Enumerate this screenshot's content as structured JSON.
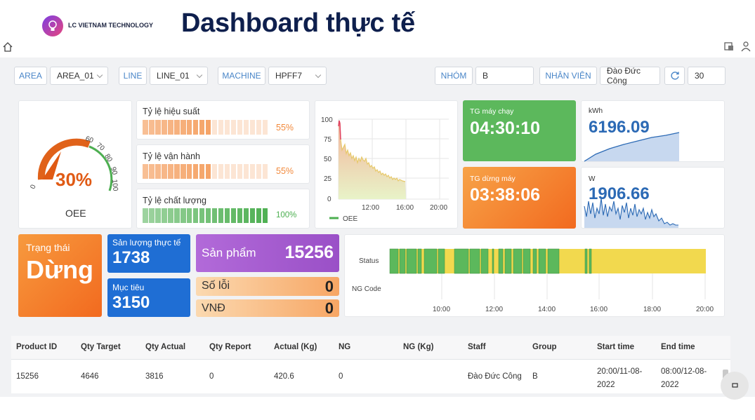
{
  "brand": {
    "name": "LC VIETNAM TECHNOLOGY"
  },
  "page_title": "Dashboard thực tế",
  "filters": {
    "area_label": "AREA",
    "area_value": "AREA_01",
    "line_label": "LINE",
    "line_value": "LINE_01",
    "machine_label": "MACHINE",
    "machine_value": "HPFF7",
    "group_label": "NHÓM",
    "group_value": "B",
    "staff_label": "NHÂN VIÊN",
    "staff_value": "Đào Đức Công",
    "refresh_interval": "30"
  },
  "oee": {
    "value": "30%",
    "label": "OEE",
    "percent": 0.3,
    "ticks": [
      "0",
      "60",
      "70",
      "80",
      "90",
      "100"
    ]
  },
  "rates": [
    {
      "label": "Tỷ lệ hiệu suất",
      "value": "55%",
      "fraction": 0.55,
      "color": "#f28a3d"
    },
    {
      "label": "Tỷ lệ vận hành",
      "value": "55%",
      "fraction": 0.55,
      "color": "#f28a3d"
    },
    {
      "label": "Tỷ lệ chất lượng",
      "value": "100%",
      "fraction": 1.0,
      "color": "#4caf50"
    }
  ],
  "oee_chart": {
    "y_ticks": [
      "100",
      "75",
      "50",
      "25",
      "0"
    ],
    "x_ticks": [
      "12:00",
      "16:00",
      "20:00"
    ],
    "legend": "OEE"
  },
  "runtime": {
    "label": "TG máy chạy",
    "value": "04:30:10",
    "color": "#5cb85c"
  },
  "downtime": {
    "label": "TG dừng máy",
    "value": "03:38:06",
    "color": "#f57f2a"
  },
  "energy": {
    "label": "kWh",
    "value": "6196.09"
  },
  "power": {
    "label": "W",
    "value": "1906.66"
  },
  "status": {
    "label": "Trạng thái",
    "value": "Dừng"
  },
  "actual_output": {
    "label": "Sản lượng thực tế",
    "value": "1738"
  },
  "target": {
    "label": "Mục tiêu",
    "value": "3150"
  },
  "product": {
    "label": "Sản phẩm",
    "value": "15256"
  },
  "defects": {
    "label": "Số lỗi",
    "value": "0"
  },
  "vnd": {
    "label": "VNĐ",
    "value": "0"
  },
  "timeline": {
    "row_labels": [
      "Status",
      "NG Code"
    ],
    "x_ticks": [
      "10:00",
      "12:00",
      "14:00",
      "16:00",
      "18:00",
      "20:00"
    ],
    "colors": {
      "run": "#5cb85c",
      "stop": "#f2d94e"
    }
  },
  "table": {
    "headers": [
      "Product ID",
      "Qty Target",
      "Qty Actual",
      "Qty Report",
      "Actual (Kg)",
      "NG",
      "NG (Kg)",
      "Staff",
      "Group",
      "Start time",
      "End time"
    ],
    "rows": [
      [
        "15256",
        "4646",
        "3816",
        "0",
        "420.6",
        "0",
        "",
        "Đào Đức Công",
        "B",
        "20:00/11-08-2022",
        "08:00/12-08-2022"
      ]
    ]
  }
}
